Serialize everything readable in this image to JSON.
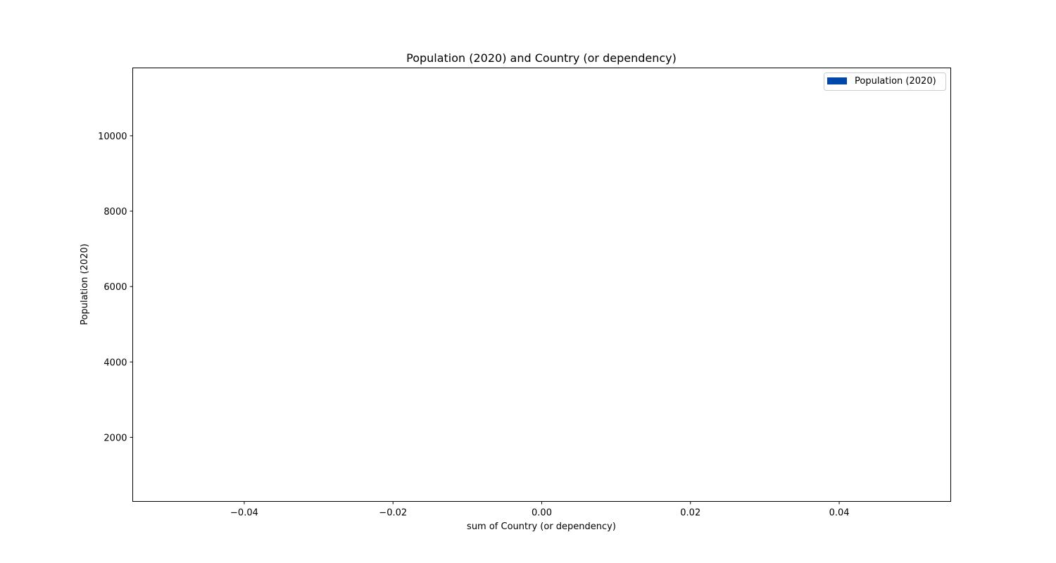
{
  "chart_data": {
    "type": "bar",
    "title": "Population (2020) and Country (or dependency)",
    "xlabel": "sum of Country (or dependency)",
    "ylabel": "Population (2020)",
    "xlim": [
      -0.055,
      0.055
    ],
    "ylim": [
      300,
      11800
    ],
    "xticks": [
      -0.04,
      -0.02,
      0.0,
      0.02,
      0.04
    ],
    "xtick_labels": [
      "−0.04",
      "−0.02",
      "0.00",
      "0.02",
      "0.04"
    ],
    "yticks": [
      2000,
      4000,
      6000,
      8000,
      10000
    ],
    "ytick_labels": [
      "2000",
      "4000",
      "6000",
      "8000",
      "10000"
    ],
    "series": [
      {
        "name": "Population (2020)",
        "color": "#0047ab",
        "values": []
      }
    ],
    "legend": {
      "position": "top-right",
      "entries": [
        "Population (2020)"
      ]
    },
    "grid": false
  }
}
